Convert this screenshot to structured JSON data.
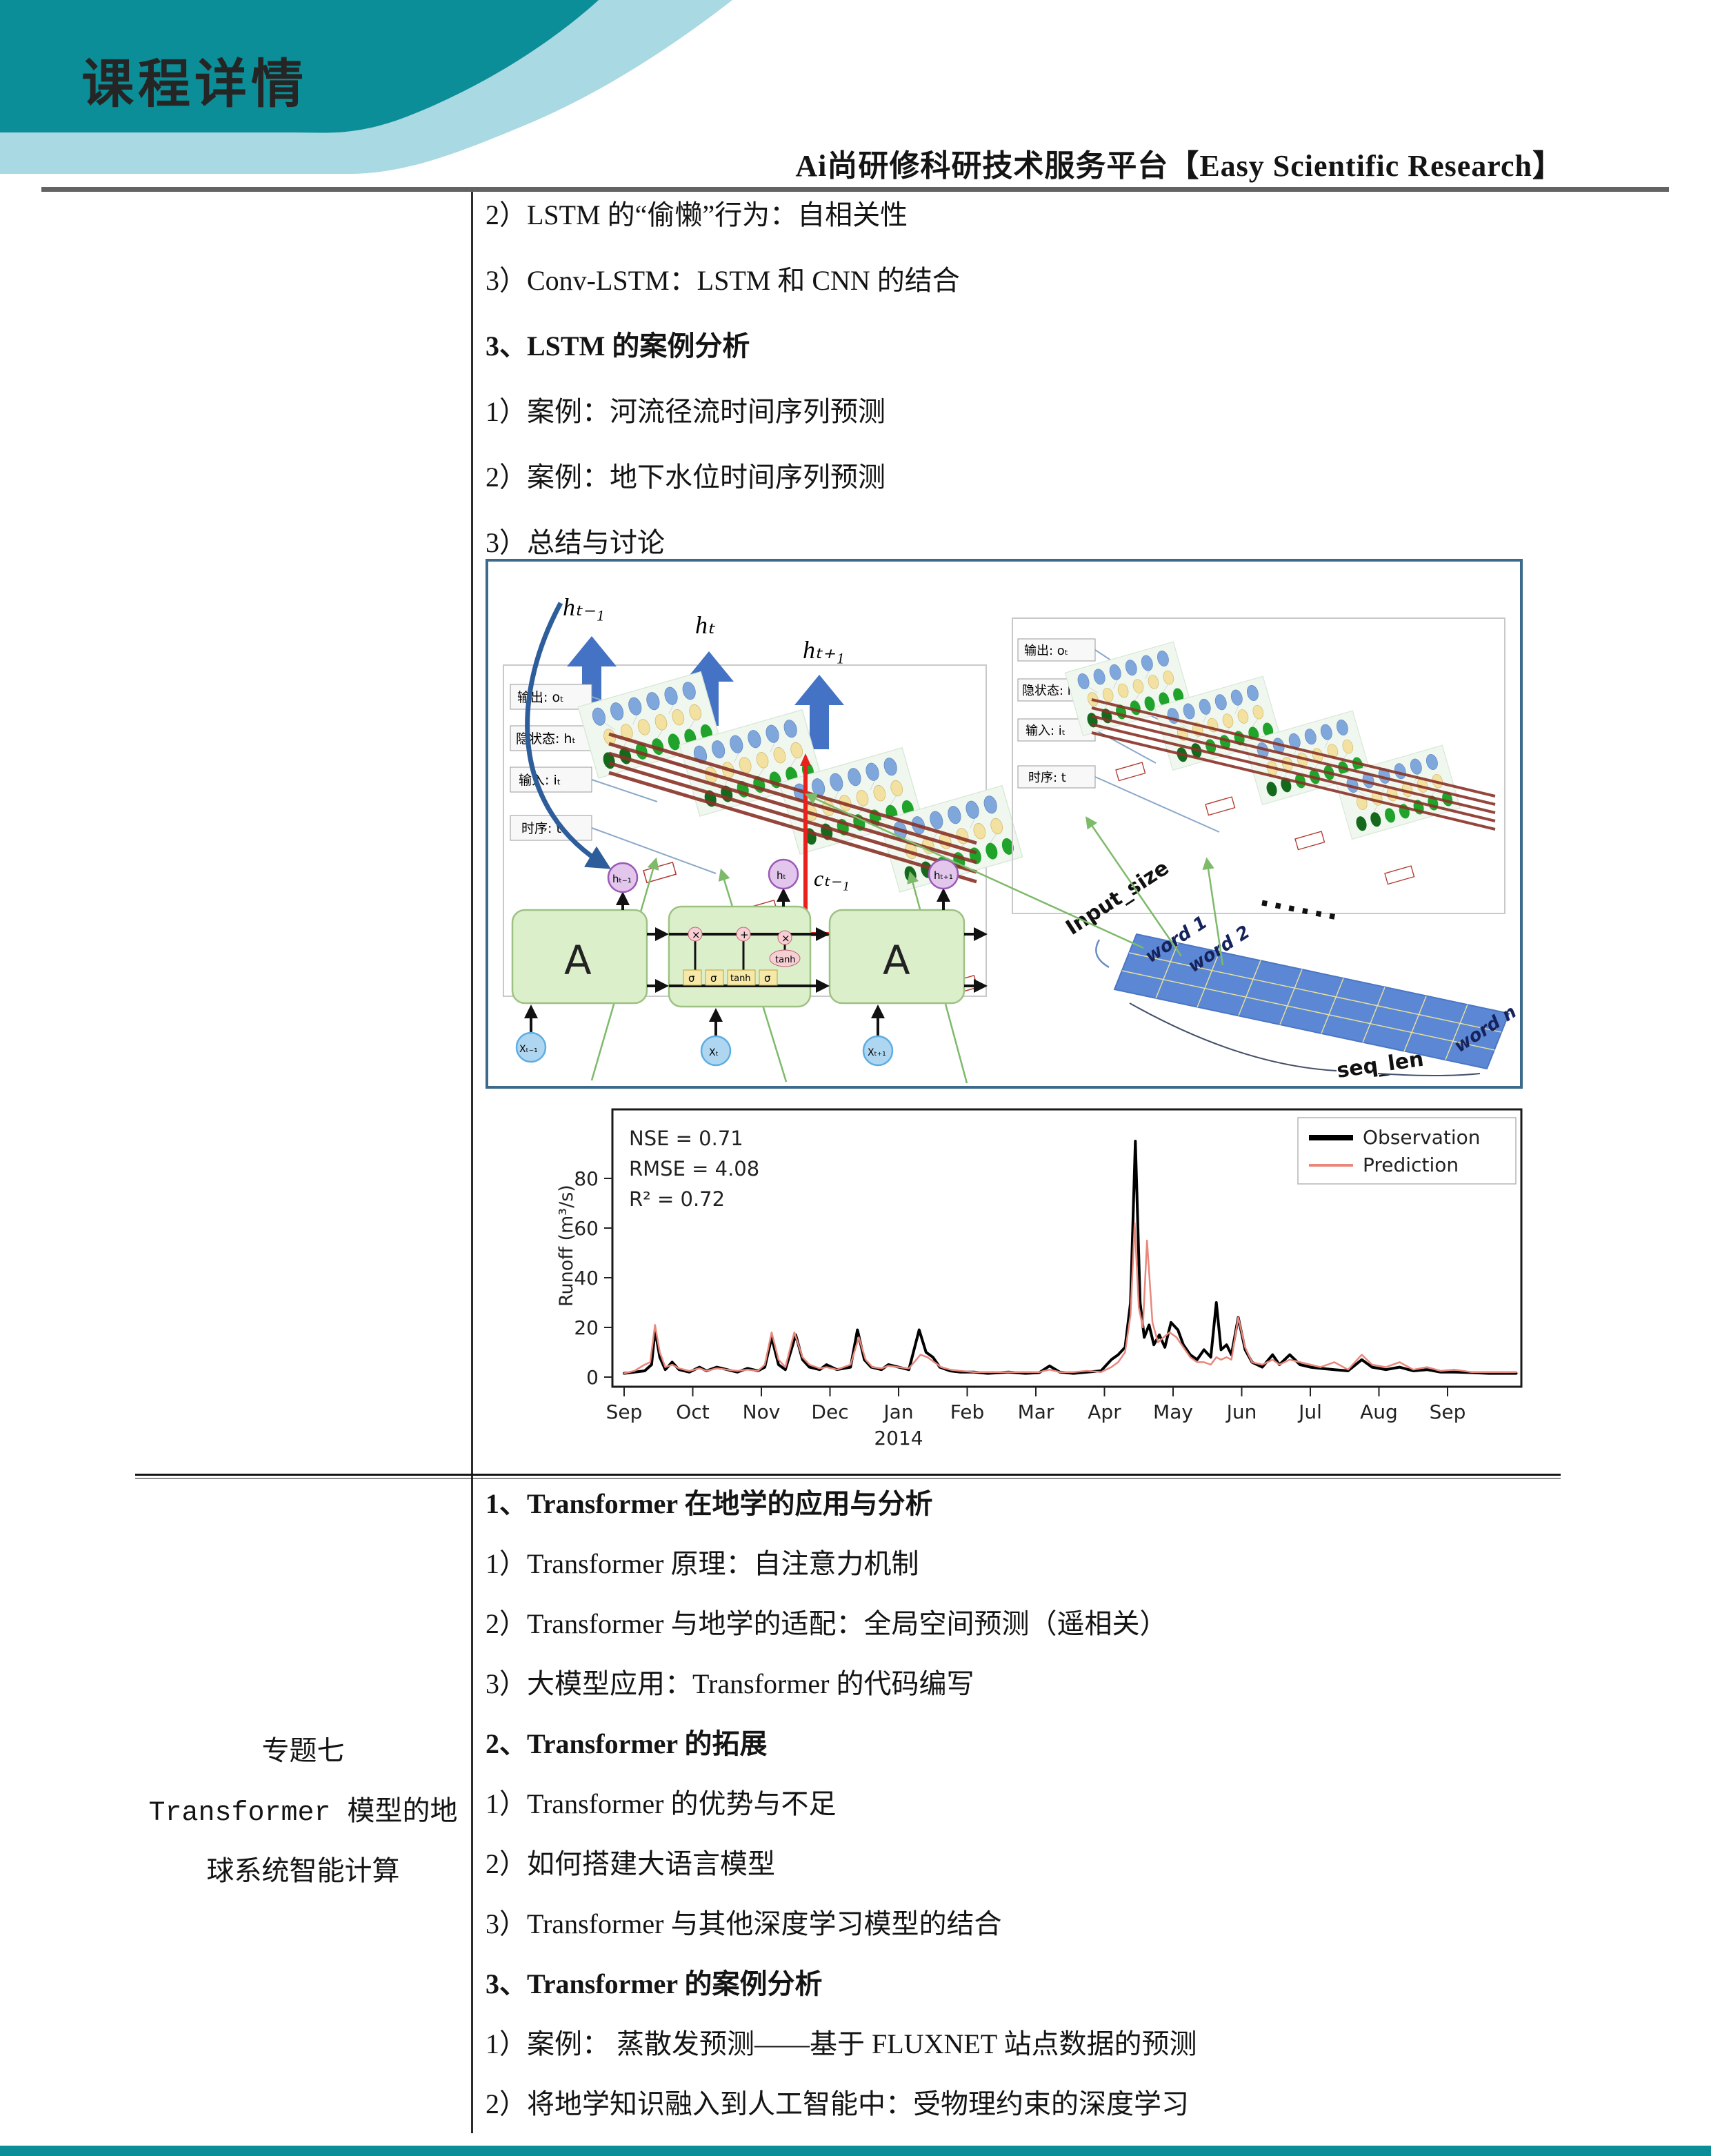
{
  "header": {
    "banner_title": "课程详情",
    "page_title": "Ai尚研修科研技术服务平台【Easy Scientific Research】"
  },
  "colors": {
    "teal_dark": "#0b8e97",
    "teal_light": "#a9d9e2",
    "rule_gray": "#636363",
    "figure_border": "#3c6a8c",
    "observation": "#000000",
    "prediction": "#e8877c"
  },
  "table": {
    "row1_items": [
      "2）LSTM 的“偷懒”行为：自相关性",
      "3）Conv-LSTM：LSTM 和 CNN 的结合",
      "3、LSTM 的案例分析",
      "1）案例：河流径流时间序列预测",
      "2）案例：地下水位时间序列预测",
      "3）总结与讨论"
    ],
    "row2_topic_lines": [
      "专题七",
      "Transformer 模型的地",
      "球系统智能计算"
    ],
    "row2_items": [
      "1、Transformer 在地学的应用与分析",
      "1）Transformer 原理：自注意力机制",
      "2）Transformer 与地学的适配：全局空间预测（遥相关）",
      "3）大模型应用：Transformer 的代码编写",
      "2、Transformer 的拓展",
      "1）Transformer 的优势与不足",
      "2）如何搭建大语言模型",
      "3）Transformer 与其他深度学习模型的结合",
      "3、Transformer 的案例分析",
      "1）案例： 蒸散发预测——基于 FLUXNET 站点数据的预测",
      "2）将地学知识融入到人工智能中：受物理约束的深度学习"
    ]
  },
  "figure": {
    "left": {
      "arrow_labels": [
        "hₜ₋₁",
        "hₜ",
        "hₜ₊₁"
      ],
      "side_labels": [
        "输出: oₜ",
        "隐状态: hₜ",
        "输入: iₜ",
        "时序: t"
      ],
      "cell_state_label": "cₜ₋₁",
      "cell_label": "A",
      "gate_labels": [
        "σ",
        "σ",
        "tanh",
        "σ"
      ],
      "tanh_label": "tanh",
      "op_labels": [
        "×",
        "+",
        "×"
      ],
      "h_labels": [
        "hₜ₋₁",
        "hₜ",
        "hₜ₊₁"
      ],
      "x_labels": [
        "Xₜ₋₁",
        "Xₜ",
        "Xₜ₊₁"
      ]
    },
    "right": {
      "side_labels": [
        "输出: oₜ",
        "隐状态: hₜ",
        "输入: iₜ",
        "时序: t"
      ],
      "input_size_label": "Input_size",
      "seq_len_label": "seq_len",
      "word_labels": [
        "word 1",
        "word 2",
        "word n"
      ],
      "dots": "······"
    }
  },
  "chart_data": {
    "type": "line",
    "title": "",
    "xlabel": "",
    "ylabel": "Runoff (m³/s)",
    "x_tick_labels": [
      "Sep",
      "Oct",
      "Nov",
      "Dec",
      "Jan",
      "Feb",
      "Mar",
      "Apr",
      "May",
      "Jun",
      "Jul",
      "Aug",
      "Sep"
    ],
    "x_year_label": "2014",
    "x_year_tick_index": 4,
    "y_ticks": [
      0,
      20,
      40,
      60,
      80
    ],
    "ylim": [
      0,
      100
    ],
    "grid": false,
    "annotations": [
      "NSE = 0.71",
      "RMSE = 4.08",
      "R² = 0.72"
    ],
    "legend": {
      "position": "upper right",
      "entries": [
        {
          "name": "Observation",
          "color": "#000000"
        },
        {
          "name": "Prediction",
          "color": "#e8877c"
        }
      ]
    },
    "series": [
      {
        "name": "Observation",
        "color": "#000000",
        "width": 4,
        "points": [
          [
            0,
            1.5
          ],
          [
            0.15,
            2
          ],
          [
            0.3,
            2.5
          ],
          [
            0.4,
            5
          ],
          [
            0.45,
            19
          ],
          [
            0.52,
            8
          ],
          [
            0.6,
            3
          ],
          [
            0.7,
            6
          ],
          [
            0.8,
            3
          ],
          [
            0.95,
            2
          ],
          [
            1.1,
            4
          ],
          [
            1.2,
            2.5
          ],
          [
            1.35,
            4
          ],
          [
            1.5,
            3
          ],
          [
            1.65,
            2
          ],
          [
            1.8,
            3.5
          ],
          [
            1.95,
            2.5
          ],
          [
            2.05,
            4
          ],
          [
            2.15,
            16
          ],
          [
            2.25,
            5
          ],
          [
            2.35,
            3
          ],
          [
            2.5,
            17
          ],
          [
            2.6,
            7
          ],
          [
            2.7,
            4
          ],
          [
            2.85,
            3
          ],
          [
            2.95,
            5
          ],
          [
            3.1,
            3
          ],
          [
            3.3,
            4
          ],
          [
            3.4,
            19
          ],
          [
            3.5,
            7
          ],
          [
            3.6,
            4
          ],
          [
            3.75,
            3
          ],
          [
            3.85,
            5
          ],
          [
            4,
            4
          ],
          [
            4.15,
            3
          ],
          [
            4.3,
            19
          ],
          [
            4.4,
            10
          ],
          [
            4.5,
            8
          ],
          [
            4.6,
            4
          ],
          [
            4.75,
            2.5
          ],
          [
            4.9,
            2
          ],
          [
            5.1,
            2
          ],
          [
            5.3,
            1.5
          ],
          [
            5.6,
            2
          ],
          [
            5.85,
            1.5
          ],
          [
            6.05,
            1.8
          ],
          [
            6.2,
            4.5
          ],
          [
            6.35,
            2
          ],
          [
            6.55,
            1.5
          ],
          [
            6.75,
            2
          ],
          [
            6.95,
            2.5
          ],
          [
            7.1,
            7
          ],
          [
            7.2,
            9
          ],
          [
            7.3,
            12
          ],
          [
            7.38,
            30
          ],
          [
            7.45,
            95
          ],
          [
            7.52,
            30
          ],
          [
            7.58,
            16
          ],
          [
            7.65,
            21
          ],
          [
            7.72,
            13
          ],
          [
            7.8,
            17
          ],
          [
            7.88,
            12
          ],
          [
            7.97,
            22
          ],
          [
            8.07,
            19
          ],
          [
            8.15,
            13
          ],
          [
            8.25,
            9
          ],
          [
            8.35,
            7
          ],
          [
            8.45,
            11
          ],
          [
            8.55,
            8
          ],
          [
            8.63,
            30
          ],
          [
            8.7,
            11
          ],
          [
            8.78,
            13
          ],
          [
            8.85,
            9
          ],
          [
            8.95,
            24
          ],
          [
            9.05,
            11
          ],
          [
            9.15,
            6
          ],
          [
            9.3,
            4
          ],
          [
            9.45,
            9
          ],
          [
            9.55,
            5
          ],
          [
            9.7,
            9
          ],
          [
            9.85,
            5
          ],
          [
            10,
            4
          ],
          [
            10.15,
            3.5
          ],
          [
            10.35,
            3
          ],
          [
            10.55,
            2.5
          ],
          [
            10.75,
            7
          ],
          [
            10.9,
            4
          ],
          [
            11.1,
            3
          ],
          [
            11.3,
            4
          ],
          [
            11.5,
            2.5
          ],
          [
            11.7,
            3
          ],
          [
            11.9,
            2
          ],
          [
            12.1,
            2
          ],
          [
            12.35,
            1.8
          ],
          [
            12.6,
            1.5
          ],
          [
            12.85,
            1.5
          ],
          [
            13,
            1.5
          ]
        ]
      },
      {
        "name": "Prediction",
        "color": "#e8877c",
        "width": 2.5,
        "points": [
          [
            0,
            1.5
          ],
          [
            0.15,
            2.5
          ],
          [
            0.3,
            5
          ],
          [
            0.38,
            6
          ],
          [
            0.45,
            21
          ],
          [
            0.52,
            10
          ],
          [
            0.6,
            4
          ],
          [
            0.7,
            5
          ],
          [
            0.8,
            3.5
          ],
          [
            0.95,
            2.5
          ],
          [
            1.1,
            3.5
          ],
          [
            1.2,
            2.5
          ],
          [
            1.35,
            3.5
          ],
          [
            1.5,
            3
          ],
          [
            1.65,
            2.5
          ],
          [
            1.8,
            3
          ],
          [
            1.95,
            2.5
          ],
          [
            2.05,
            5
          ],
          [
            2.15,
            18
          ],
          [
            2.25,
            7
          ],
          [
            2.35,
            4
          ],
          [
            2.48,
            18
          ],
          [
            2.6,
            8
          ],
          [
            2.7,
            5
          ],
          [
            2.85,
            3.5
          ],
          [
            2.95,
            4
          ],
          [
            3.1,
            3
          ],
          [
            3.3,
            5
          ],
          [
            3.42,
            16
          ],
          [
            3.52,
            7
          ],
          [
            3.62,
            4
          ],
          [
            3.75,
            3.5
          ],
          [
            3.85,
            4.5
          ],
          [
            4,
            4
          ],
          [
            4.15,
            3.5
          ],
          [
            4.32,
            9
          ],
          [
            4.42,
            8
          ],
          [
            4.52,
            6
          ],
          [
            4.62,
            4
          ],
          [
            4.75,
            3
          ],
          [
            4.9,
            2.5
          ],
          [
            5.1,
            2
          ],
          [
            5.3,
            2
          ],
          [
            5.6,
            2
          ],
          [
            5.85,
            2
          ],
          [
            6.05,
            2
          ],
          [
            6.2,
            3
          ],
          [
            6.35,
            2
          ],
          [
            6.55,
            2
          ],
          [
            6.75,
            2.5
          ],
          [
            6.95,
            2
          ],
          [
            7.1,
            4
          ],
          [
            7.2,
            6
          ],
          [
            7.3,
            10
          ],
          [
            7.38,
            25
          ],
          [
            7.44,
            62
          ],
          [
            7.5,
            28
          ],
          [
            7.56,
            20
          ],
          [
            7.62,
            55
          ],
          [
            7.7,
            22
          ],
          [
            7.78,
            14
          ],
          [
            7.86,
            16
          ],
          [
            7.95,
            18
          ],
          [
            8.05,
            16
          ],
          [
            8.15,
            12
          ],
          [
            8.25,
            8
          ],
          [
            8.35,
            6
          ],
          [
            8.45,
            6
          ],
          [
            8.55,
            5
          ],
          [
            8.63,
            8
          ],
          [
            8.7,
            7
          ],
          [
            8.78,
            8
          ],
          [
            8.85,
            7
          ],
          [
            8.95,
            24
          ],
          [
            9.05,
            12
          ],
          [
            9.15,
            6
          ],
          [
            9.3,
            5
          ],
          [
            9.45,
            7
          ],
          [
            9.55,
            5
          ],
          [
            9.7,
            7
          ],
          [
            9.85,
            6
          ],
          [
            10,
            5
          ],
          [
            10.15,
            4
          ],
          [
            10.35,
            6
          ],
          [
            10.55,
            3
          ],
          [
            10.75,
            9
          ],
          [
            10.9,
            5
          ],
          [
            11.1,
            4
          ],
          [
            11.3,
            6
          ],
          [
            11.5,
            3
          ],
          [
            11.7,
            4
          ],
          [
            11.9,
            2.5
          ],
          [
            12.1,
            3
          ],
          [
            12.35,
            2
          ],
          [
            12.6,
            2
          ],
          [
            12.85,
            2
          ],
          [
            13,
            2
          ]
        ]
      }
    ]
  }
}
